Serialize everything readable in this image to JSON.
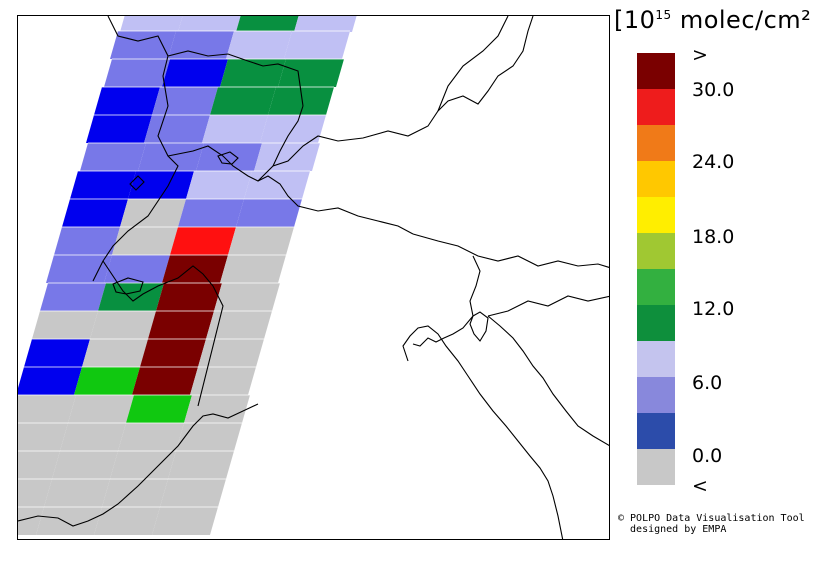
{
  "legend": {
    "unit_prefix": "[10",
    "unit_exponent": "15",
    "unit_suffix": " molec/cm²]",
    "tick_labels": [
      ">",
      "30.0",
      "24.0",
      "18.0",
      "12.0",
      "6.0",
      "0.0",
      "<"
    ],
    "colors": [
      "#7a0000",
      "#ee1c1c",
      "#f07a18",
      "#ffc800",
      "#ffee00",
      "#a0c832",
      "#33b040",
      "#0e8f3c",
      "#c4c4ee",
      "#8888dc",
      "#2c4caa",
      "#c8c8c8"
    ]
  },
  "credit": {
    "line1": "© POLPO Data Visualisation Tool",
    "line2": "  designed by EMPA"
  },
  "map": {
    "region": "Alps / Northern Italy",
    "pixel_colors": {
      "grey": "#c8c8c8",
      "dark_red": "#7a0000",
      "red": "#ff1010",
      "green": "#089040",
      "bright_green": "#10c810",
      "blue": "#0000ee",
      "mid_blue": "#7878e8",
      "light_blue": "#c0c0f4"
    }
  }
}
